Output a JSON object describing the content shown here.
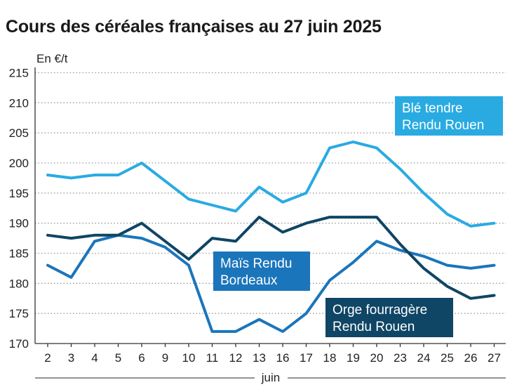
{
  "chart_data": {
    "type": "line",
    "title": "Cours des céréales françaises au 27 juin 2025",
    "ylabel": "En €/t",
    "xlabel": "juin",
    "ylim": [
      170,
      215
    ],
    "yticks": [
      170,
      175,
      180,
      185,
      190,
      195,
      200,
      205,
      210,
      215
    ],
    "categories": [
      "2",
      "3",
      "4",
      "5",
      "6",
      "9",
      "10",
      "11",
      "12",
      "13",
      "16",
      "17",
      "18",
      "19",
      "20",
      "23",
      "24",
      "25",
      "26",
      "27"
    ],
    "grid": true,
    "series": [
      {
        "name": "Blé tendre Rendu Rouen",
        "label_lines": [
          "Blé tendre",
          "Rendu Rouen"
        ],
        "color": "#29abe2",
        "values": [
          198,
          197.5,
          198,
          198,
          200,
          197,
          194,
          193,
          192,
          196,
          193.5,
          195,
          202.5,
          203.5,
          202.5,
          199,
          195,
          191.5,
          189.5,
          190
        ]
      },
      {
        "name": "Maïs Rendu Bordeaux",
        "label_lines": [
          "Maïs Rendu",
          "Bordeaux"
        ],
        "color": "#1b75bb",
        "values": [
          183,
          181,
          187,
          188,
          187.5,
          186,
          183,
          172,
          172,
          174,
          172,
          175,
          180.5,
          183.5,
          187,
          185.5,
          184.5,
          183,
          182.5,
          183
        ]
      },
      {
        "name": "Orge fourragère Rendu Rouen",
        "label_lines": [
          "Orge fourragère",
          "Rendu Rouen"
        ],
        "color": "#0f4565",
        "values": [
          188,
          187.5,
          188,
          188,
          190,
          187,
          184,
          187.5,
          187,
          191,
          188.5,
          190,
          191,
          191,
          191,
          186.5,
          182.5,
          179.5,
          177.5,
          178
        ]
      }
    ]
  }
}
